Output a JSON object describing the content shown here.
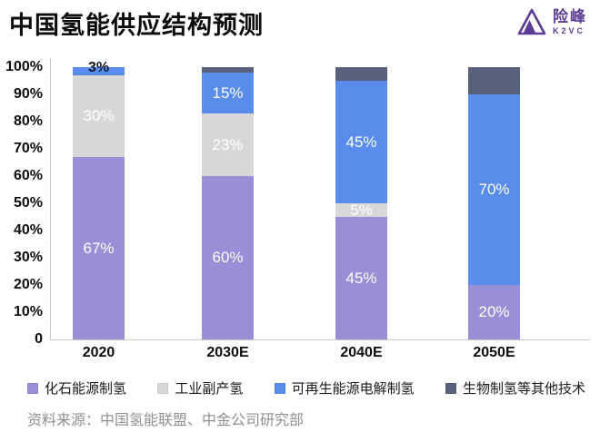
{
  "header": {
    "title": "中国氢能供应结构预测"
  },
  "logo": {
    "name": "险峰",
    "sub": "K2VC",
    "color": "#5C3C94",
    "icon": "triangle-peak-icon"
  },
  "chart_data": {
    "type": "bar",
    "stacked": true,
    "categories": [
      "2020",
      "2030E",
      "2040E",
      "2050E"
    ],
    "series": [
      {
        "name": "化石能源制氢",
        "color": "#9A8FD6",
        "show_labels": true,
        "values": [
          67,
          60,
          45,
          20
        ]
      },
      {
        "name": "工业副产氢",
        "color": "#D8D8D8",
        "show_labels": true,
        "values": [
          30,
          23,
          5,
          0
        ]
      },
      {
        "name": "可再生能源电解制氢",
        "color": "#5A8CEC",
        "show_labels": true,
        "values": [
          3,
          15,
          45,
          70
        ]
      },
      {
        "name": "生物制氢等其他技术",
        "color": "#57617A",
        "show_labels": false,
        "values": [
          0,
          2,
          5,
          10
        ]
      }
    ],
    "y_ticks": [
      "100%",
      "90%",
      "80%",
      "70%",
      "60%",
      "50%",
      "40%",
      "30%",
      "20%",
      "10%",
      "0"
    ],
    "ylim": [
      0,
      100
    ],
    "grid": false,
    "legend_position": "bottom",
    "bar_label_suffix": "%",
    "small_segment_label_color": "#10162a",
    "value_label_color": "#ffffff"
  },
  "source": {
    "text": "资料来源：中国氢能联盟、中金公司研究部"
  }
}
